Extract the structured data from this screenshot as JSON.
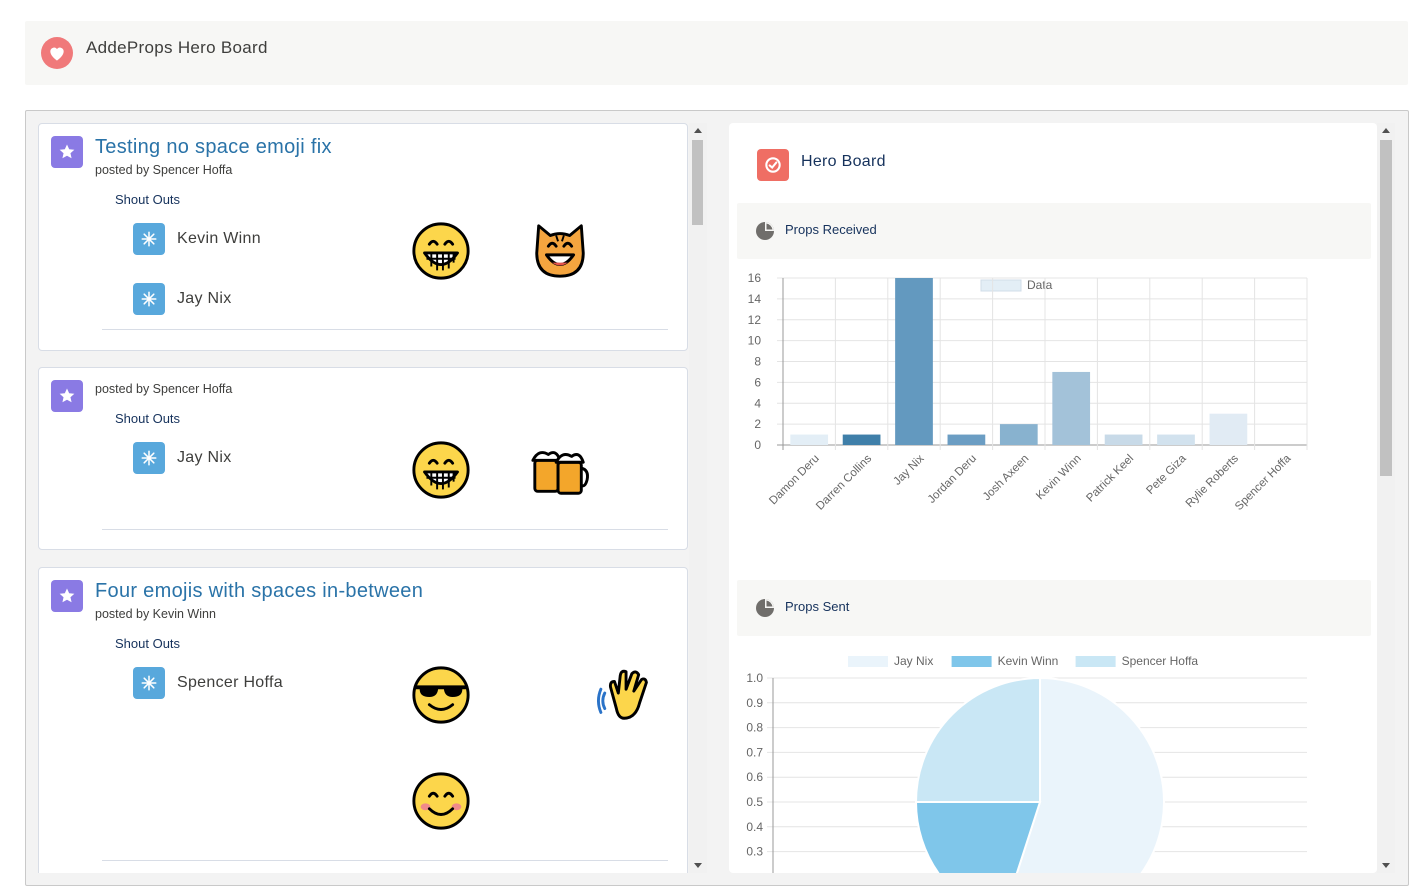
{
  "header": {
    "title": "AddeProps Hero Board",
    "icon": "heart-icon",
    "icon_color": "#f0797a"
  },
  "feed": [
    {
      "title": "Testing no space emoji fix",
      "posted_by": "posted by Spencer Hoffa",
      "shout_outs_label": "Shout Outs",
      "people": [
        "Kevin Winn",
        "Jay Nix"
      ],
      "emojis": [
        "grinning-face-icon",
        "smiling-cat-icon"
      ]
    },
    {
      "title": "",
      "posted_by": "posted by Spencer Hoffa",
      "shout_outs_label": "Shout Outs",
      "people": [
        "Jay Nix"
      ],
      "emojis": [
        "grinning-face-icon",
        "beer-mugs-icon"
      ]
    },
    {
      "title": "Four emojis with spaces in-between",
      "posted_by": "posted by Kevin Winn",
      "shout_outs_label": "Shout Outs",
      "people": [
        "Spencer Hoffa"
      ],
      "emojis": [
        "sunglasses-face-icon",
        "clapping-hands-icon",
        "smiling-face-icon"
      ]
    }
  ],
  "hero_board": {
    "title": "Hero Board",
    "props_received_title": "Props Received",
    "props_sent_title": "Props Sent"
  },
  "chart_data": [
    {
      "type": "bar",
      "title": "Props Received",
      "categories": [
        "Damon Deru",
        "Darren Collins",
        "Jay Nix",
        "Jordan Deru",
        "Josh Axeen",
        "Kevin Winn",
        "Patrick Keel",
        "Pete Giza",
        "Rylie Roberts",
        "Spencer Hoffa"
      ],
      "series": [
        {
          "name": "Data",
          "values": [
            1,
            1,
            16,
            1,
            2,
            7,
            1,
            1,
            3,
            0
          ]
        }
      ],
      "ylim": [
        0,
        16
      ],
      "yticks": [
        0,
        2,
        4,
        6,
        8,
        10,
        12,
        14,
        16
      ],
      "colors": [
        "#e3eef6",
        "#3f7fa9",
        "#6399bf",
        "#6b9dc3",
        "#88b2cf",
        "#a3c2d9",
        "#c8dae8",
        "#d2e2ee",
        "#e1ebf4",
        "#f2f6fa"
      ],
      "legend": "top",
      "grid": true
    },
    {
      "type": "pie",
      "title": "Props Sent",
      "labels": [
        "Jay Nix",
        "Kevin Winn",
        "Spencer Hoffa"
      ],
      "values": [
        0.55,
        0.2,
        0.25
      ],
      "colors": [
        "#eaf4fb",
        "#7fc6ea",
        "#c9e7f5"
      ],
      "yticks": [
        "1.0",
        "0.9",
        "0.8",
        "0.7",
        "0.6",
        "0.5",
        "0.4",
        "0.3"
      ],
      "legend": "top",
      "grid": true
    }
  ]
}
